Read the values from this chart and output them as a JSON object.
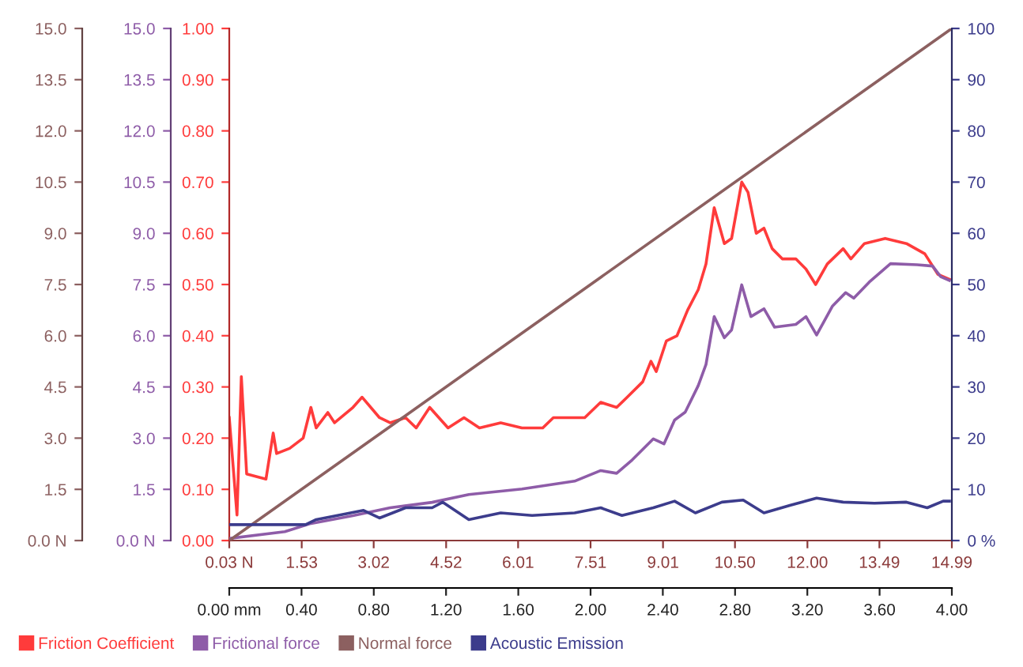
{
  "chart_data": {
    "type": "line",
    "legend": "bottom",
    "xlim": [
      0.03,
      14.99
    ],
    "xticks": [
      {
        "value": 0.03,
        "label": "0.03 N"
      },
      1.53,
      3.02,
      4.52,
      6.01,
      7.51,
      9.01,
      {
        "value": 10.5,
        "label": "10.50"
      },
      {
        "value": 12.0,
        "label": "12.00"
      },
      13.49,
      14.99
    ],
    "x2lim": [
      0,
      4
    ],
    "x2ticks": [
      {
        "value": 0,
        "label": "0.00 mm"
      },
      {
        "value": 0.4,
        "label": "0.40"
      },
      {
        "value": 0.8,
        "label": "0.80"
      },
      {
        "value": 1.2,
        "label": "1.20"
      },
      {
        "value": 1.6,
        "label": "1.60"
      },
      {
        "value": 2.0,
        "label": "2.00"
      },
      {
        "value": 2.4,
        "label": "2.40"
      },
      {
        "value": 2.8,
        "label": "2.80"
      },
      {
        "value": 3.2,
        "label": "3.20"
      },
      {
        "value": 3.6,
        "label": "3.60"
      },
      {
        "value": 4.0,
        "label": "4.00"
      }
    ],
    "ylim": [
      0,
      15
    ],
    "yticks": [
      {
        "value": 0,
        "label": "0.0 N"
      },
      {
        "value": 1.5,
        "label": "1.5"
      },
      {
        "value": 3,
        "label": "3.0"
      },
      {
        "value": 4.5,
        "label": "4.5"
      },
      {
        "value": 6,
        "label": "6.0"
      },
      {
        "value": 7.5,
        "label": "7.5"
      },
      {
        "value": 9,
        "label": "9.0"
      },
      {
        "value": 10.5,
        "label": "10.5"
      },
      {
        "value": 12,
        "label": "12.0"
      },
      {
        "value": 13.5,
        "label": "13.5"
      },
      {
        "value": 15,
        "label": "15.0"
      }
    ],
    "y2lim": [
      0,
      1
    ],
    "y2ticks": [
      {
        "value": 0,
        "label": "0.00"
      },
      {
        "value": 0.1,
        "label": "0.10"
      },
      {
        "value": 0.2,
        "label": "0.20"
      },
      {
        "value": 0.3,
        "label": "0.30"
      },
      {
        "value": 0.4,
        "label": "0.40"
      },
      {
        "value": 0.5,
        "label": "0.50"
      },
      {
        "value": 0.6,
        "label": "0.60"
      },
      {
        "value": 0.7,
        "label": "0.70"
      },
      {
        "value": 0.8,
        "label": "0.80"
      },
      {
        "value": 0.9,
        "label": "0.90"
      },
      {
        "value": 1.0,
        "label": "1.00"
      }
    ],
    "y3lim": [
      0,
      100
    ],
    "y3ticks": [
      {
        "value": 0,
        "label": "0 %"
      },
      10,
      20,
      30,
      40,
      50,
      60,
      70,
      80,
      90,
      100
    ],
    "series": [
      {
        "name": "Friction Coefficient",
        "color": "#ff3b3b",
        "axis": "y2",
        "x": [
          0.03,
          0.19,
          0.28,
          0.39,
          0.79,
          0.94,
          1.01,
          1.28,
          1.56,
          1.72,
          1.83,
          2.07,
          2.21,
          2.59,
          2.78,
          3.14,
          3.36,
          3.68,
          3.9,
          4.18,
          4.56,
          4.89,
          5.21,
          5.65,
          6.09,
          6.52,
          6.74,
          7.39,
          7.72,
          8.05,
          8.27,
          8.59,
          8.76,
          8.87,
          9.08,
          9.3,
          9.52,
          9.74,
          9.9,
          10.07,
          10.28,
          10.43,
          10.64,
          10.77,
          10.94,
          11.1,
          11.27,
          11.48,
          11.76,
          11.97,
          12.17,
          12.41,
          12.74,
          12.9,
          13.18,
          13.61,
          14.05,
          14.43,
          14.7,
          14.94
        ],
        "values": [
          0.24,
          0.05,
          0.32,
          0.13,
          0.12,
          0.21,
          0.17,
          0.18,
          0.2,
          0.26,
          0.22,
          0.25,
          0.23,
          0.26,
          0.28,
          0.24,
          0.23,
          0.24,
          0.22,
          0.26,
          0.22,
          0.24,
          0.22,
          0.23,
          0.22,
          0.22,
          0.24,
          0.24,
          0.27,
          0.26,
          0.28,
          0.31,
          0.35,
          0.33,
          0.39,
          0.4,
          0.45,
          0.49,
          0.54,
          0.65,
          0.58,
          0.59,
          0.7,
          0.68,
          0.6,
          0.61,
          0.57,
          0.55,
          0.55,
          0.53,
          0.5,
          0.54,
          0.57,
          0.55,
          0.58,
          0.59,
          0.58,
          0.56,
          0.52,
          0.51
        ]
      },
      {
        "name": "Frictional force",
        "color": "#8e5ca8",
        "axis": "y",
        "x": [
          0.03,
          1.18,
          1.72,
          2.59,
          3.36,
          4.23,
          4.99,
          6.09,
          7.18,
          7.72,
          8.05,
          8.37,
          8.81,
          9.03,
          9.25,
          9.47,
          9.74,
          9.9,
          10.07,
          10.28,
          10.43,
          10.64,
          10.83,
          11.1,
          11.32,
          11.76,
          11.97,
          12.19,
          12.52,
          12.79,
          12.96,
          13.28,
          13.72,
          14.27,
          14.59,
          14.76,
          14.94
        ],
        "values": [
          0.06,
          0.26,
          0.5,
          0.73,
          0.96,
          1.12,
          1.35,
          1.51,
          1.74,
          2.05,
          1.97,
          2.36,
          2.98,
          2.83,
          3.53,
          3.76,
          4.54,
          5.16,
          6.56,
          5.94,
          6.17,
          7.49,
          6.56,
          6.79,
          6.25,
          6.33,
          6.56,
          6.02,
          6.87,
          7.26,
          7.1,
          7.57,
          8.11,
          8.08,
          8.04,
          7.73,
          7.62
        ]
      },
      {
        "name": "Normal force",
        "color": "#8c6060",
        "axis": "y",
        "x": [
          0.03,
          14.99
        ],
        "values": [
          0,
          15
        ]
      },
      {
        "name": "Acoustic Emission",
        "color": "#3c3c8c",
        "axis": "y3",
        "x": [
          0.03,
          1.61,
          1.83,
          2.27,
          2.81,
          3.14,
          3.68,
          4.23,
          4.45,
          4.99,
          5.65,
          6.3,
          7.18,
          7.72,
          8.16,
          8.81,
          9.25,
          9.68,
          10.23,
          10.67,
          11.1,
          11.65,
          12.19,
          12.74,
          13.39,
          14.05,
          14.48,
          14.81,
          14.94
        ],
        "values": [
          3.1,
          3.1,
          4.1,
          4.9,
          5.9,
          4.4,
          6.4,
          6.4,
          7.5,
          4.1,
          5.4,
          4.9,
          5.4,
          6.4,
          4.9,
          6.4,
          7.7,
          5.4,
          7.5,
          7.9,
          5.4,
          6.9,
          8.3,
          7.5,
          7.3,
          7.5,
          6.4,
          7.7,
          7.7
        ]
      }
    ]
  }
}
